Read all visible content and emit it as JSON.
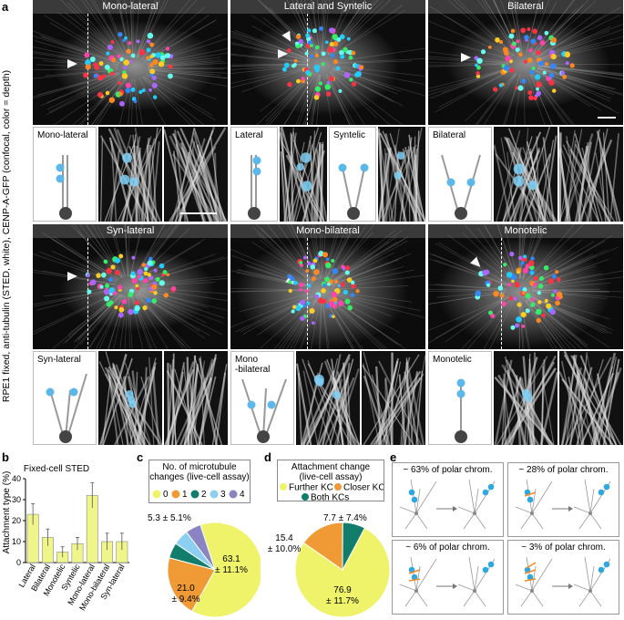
{
  "panels": {
    "a": "a",
    "b": "b",
    "c": "c",
    "d": "d",
    "e": "e"
  },
  "side_label": "RPE1 fixed, anti-tubulin (STED, white), CENP-A-GFP (confocal, color = depth)",
  "row1": {
    "headers": [
      "Mono-lateral",
      "Lateral and Syntelic",
      "Bilateral"
    ],
    "insets": [
      "Mono-lateral",
      "Lateral",
      "Syntelic",
      "Bilateral"
    ]
  },
  "row2": {
    "headers": [
      "Syn-lateral",
      "Mono-bilateral",
      "Monotelic"
    ],
    "insets": [
      "Syn-lateral",
      "Mono\n-bilateral",
      "Monotelic"
    ]
  },
  "b": {
    "title": "Fixed-cell STED",
    "ylabel": "Attachment type (%)",
    "yticks": [
      "0",
      "10",
      "20",
      "30",
      "40"
    ]
  },
  "c": {
    "title_line1": "No. of microtubule",
    "title_line2": "changes (live-cell assay)",
    "legend": [
      "0",
      "1",
      "2",
      "3",
      "4"
    ],
    "label_small": "5.3 ± 5.1%",
    "label_1a": "21.0",
    "label_1b": "± 9.4%",
    "label_0a": "63.1",
    "label_0b": "± 11.1%"
  },
  "d": {
    "title_line1": "Attachment change",
    "title_line2": "(live-cell assay)",
    "legend": [
      "Further KC",
      "Closer KC",
      "Both KCs"
    ],
    "label_both": "7.7 ± 7.4%",
    "label_closer_a": "15.4",
    "label_closer_b": "± 10.0%",
    "label_further_a": "76.9",
    "label_further_b": "± 11.7%"
  },
  "e": {
    "boxes": [
      "~ 63% of polar chrom.",
      "~ 28% of polar chrom.",
      "~ 6% of polar chrom.",
      "~ 3% of polar chrom."
    ]
  },
  "chart_data": [
    {
      "type": "bar",
      "title": "Fixed-cell STED",
      "ylabel": "Attachment type (%)",
      "categories": [
        "Lateral",
        "Bilateral",
        "Monotelic",
        "Syntelic",
        "Mono-lateral",
        "Mono-bilateral",
        "Syn-lateral"
      ],
      "values": [
        23,
        12,
        5,
        9,
        32,
        10,
        10
      ],
      "errors": [
        5,
        4,
        2.5,
        3,
        6,
        4,
        4
      ],
      "ylim": [
        0,
        40
      ],
      "color": "#f0f58a"
    },
    {
      "type": "pie",
      "title": "No. of microtubule changes (live-cell assay)",
      "labels": [
        "0",
        "1",
        "2",
        "3",
        "4"
      ],
      "values": [
        63.1,
        21.0,
        5.3,
        5.3,
        5.3
      ],
      "colors": [
        "#eef36a",
        "#f09a35",
        "#137d6c",
        "#8ccff0",
        "#8a84c2"
      ]
    },
    {
      "type": "pie",
      "title": "Attachment change (live-cell assay)",
      "labels": [
        "Further KC",
        "Closer KC",
        "Both KCs"
      ],
      "values": [
        76.9,
        15.4,
        7.7
      ],
      "colors": [
        "#eef36a",
        "#f09a35",
        "#137d6c"
      ]
    }
  ]
}
